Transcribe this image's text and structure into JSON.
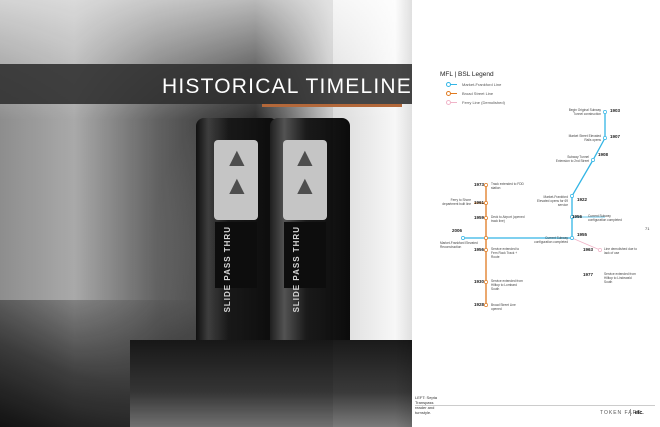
{
  "title": "HISTORICAL TIMELINE",
  "legend": {
    "title": "MFL | BSL Legend",
    "items": [
      {
        "label": "Market-Frankford Line",
        "color": "#33b5e5"
      },
      {
        "label": "Broad Street Line",
        "color": "#e07a1f"
      },
      {
        "label": "Ferry Line (Demolished)",
        "color": "#f0b4c8"
      }
    ]
  },
  "photo": {
    "slot_text": "SLIDE PASS THRU"
  },
  "timeline": {
    "mfl": [
      {
        "year": "1903",
        "label": "Begin Original Subway Tunnel construction"
      },
      {
        "year": "1907",
        "label": "Market Street Elevated Rails opens"
      },
      {
        "year": "1908",
        "label": "Subway Tunnel Extension to 2nd Street"
      },
      {
        "year": "1922",
        "label": "Market-Frankford Elevated opens for 69 service"
      },
      {
        "year": "1955",
        "label": "Current Subway configuration completed"
      }
    ],
    "mfl_right": [
      {
        "year": "1956",
        "label": "Current Subway configuration completed"
      },
      {
        "year": "1963",
        "label": "Line demolished due to lack of use"
      },
      {
        "year": "1977",
        "label": "Service extended from Hilltop to Lindewald South"
      }
    ],
    "bsl": [
      {
        "year": "1973",
        "label": "Track extended to FDD station"
      },
      {
        "year": "1961",
        "label": "Ferry to Shore department built line"
      },
      {
        "year": "1959",
        "label": "Deck to Airport (opened track line)"
      },
      {
        "year": "2006",
        "label": "Market-Frankford Elevated Reconstruction"
      },
      {
        "year": "1956",
        "label": "Service extended to Fern Rock Track + Route"
      },
      {
        "year": "1930",
        "label": "Service extended from Hilltop to Lombard South"
      },
      {
        "year": "1928",
        "label": "Broad Street Line opened"
      }
    ]
  },
  "page_number": "71",
  "caption": "LEFT: Septa Transpass reader and turnstyle.",
  "footer": {
    "brand": "TOKEN FARE",
    "section": "etc."
  }
}
